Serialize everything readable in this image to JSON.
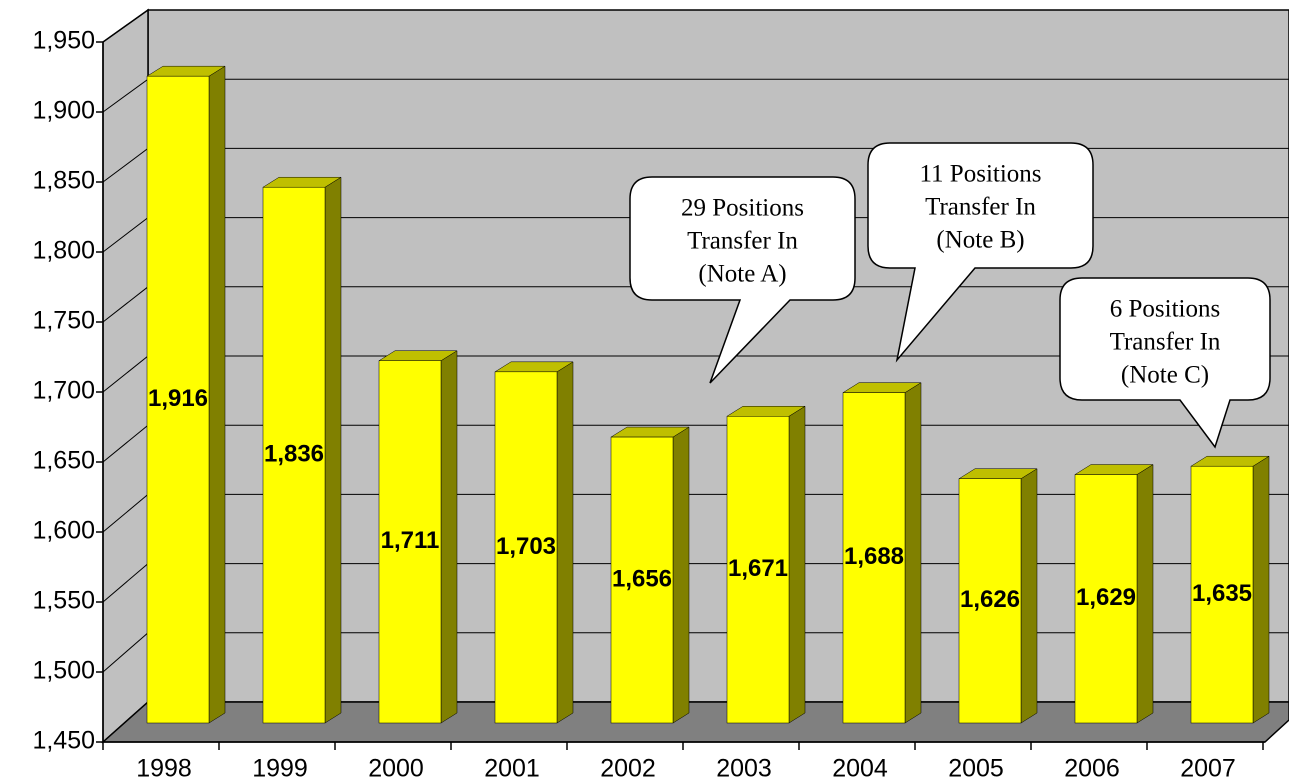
{
  "chart_data": {
    "type": "bar3d",
    "categories": [
      "1998",
      "1999",
      "2000",
      "2001",
      "2002",
      "2003",
      "2004",
      "2005",
      "2006",
      "2007"
    ],
    "values": [
      1916,
      1836,
      1711,
      1703,
      1656,
      1671,
      1688,
      1626,
      1629,
      1635
    ],
    "value_labels": [
      "1,916",
      "1,836",
      "1,711",
      "1,703",
      "1,656",
      "1,671",
      "1,688",
      "1,626",
      "1,629",
      "1,635"
    ],
    "color": "#ffff00",
    "ylim": [
      1450,
      1950
    ],
    "yticks": [
      {
        "value": 1450,
        "label": "1,450"
      },
      {
        "value": 1500,
        "label": "1,500"
      },
      {
        "value": 1550,
        "label": "1,550"
      },
      {
        "value": 1600,
        "label": "1,600"
      },
      {
        "value": 1650,
        "label": "1,650"
      },
      {
        "value": 1700,
        "label": "1,700"
      },
      {
        "value": 1750,
        "label": "1,750"
      },
      {
        "value": 1800,
        "label": "1,800"
      },
      {
        "value": 1850,
        "label": "1,850"
      },
      {
        "value": 1900,
        "label": "1,900"
      },
      {
        "value": 1950,
        "label": "1,950"
      }
    ],
    "grid": true,
    "annotations": [
      {
        "lines": [
          "29 Positions",
          "Transfer In",
          "(Note A)"
        ]
      },
      {
        "lines": [
          "11 Positions",
          "Transfer In",
          "(Note B)"
        ]
      },
      {
        "lines": [
          "6 Positions",
          "Transfer In",
          "(Note C)"
        ]
      }
    ]
  }
}
